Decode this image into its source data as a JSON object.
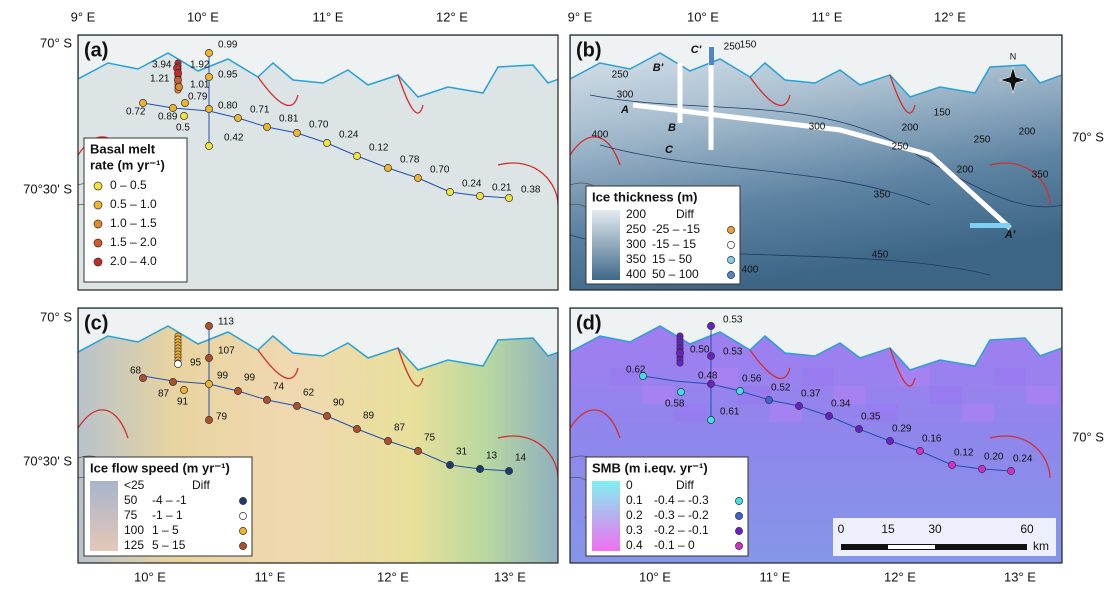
{
  "axes": {
    "top": [
      "9° E",
      "10° E",
      "11° E",
      "12° E"
    ],
    "bottom": [
      "10° E",
      "11° E",
      "12° E",
      "13° E"
    ],
    "left": [
      "70° S",
      "70°30' S"
    ],
    "right": [
      "70° S"
    ]
  },
  "panels": [
    {
      "label": "(a)",
      "legend": {
        "title": [
          "Basal melt",
          "rate (m yr⁻¹)"
        ],
        "items": [
          {
            "label": "0 – 0.5",
            "color": "#f2e33c"
          },
          {
            "label": "0.5 – 1.0",
            "color": "#f0b52b"
          },
          {
            "label": "1.0 – 1.5",
            "color": "#e38a27"
          },
          {
            "label": "1.5 – 2.0",
            "color": "#d55a2a"
          },
          {
            "label": "2.0 – 4.0",
            "color": "#c42a27"
          }
        ]
      },
      "point_labels": [
        "3.94",
        "1.92",
        "1.21",
        "1.01",
        "0.99",
        "0.95",
        "0.80",
        "0.79",
        "0.72",
        "0.89",
        "0.5",
        "0.42",
        "0.71",
        "0.81",
        "0.70",
        "0.24",
        "0.12",
        "0.78",
        "0.70",
        "0.24",
        "0.21",
        "0.38"
      ]
    },
    {
      "label": "(b)",
      "legend": {
        "title": [
          "Ice thickness (m)"
        ],
        "ramp": [
          "200",
          "250",
          "300",
          "350",
          "400"
        ],
        "ramp_colors": [
          "#e4ebef",
          "#3f6889"
        ],
        "diff_title": "Diff",
        "items": [
          {
            "label": "-25 – -15",
            "color": "#f0a030"
          },
          {
            "label": "-15 – 15",
            "color": "#ffffff"
          },
          {
            "label": "15 – 50",
            "color": "#7fd0f0"
          },
          {
            "label": "50 – 100",
            "color": "#4f86c6"
          }
        ]
      },
      "letters": [
        "A",
        "B",
        "C",
        "C'",
        "B'",
        "A'"
      ],
      "contours": [
        "250",
        "150",
        "250",
        "300",
        "200",
        "150",
        "200",
        "250",
        "200",
        "350",
        "400",
        "300",
        "250",
        "350",
        "400",
        "450"
      ],
      "compass": "N"
    },
    {
      "label": "(c)",
      "legend": {
        "title": [
          "Ice flow speed (m yr⁻¹)"
        ],
        "ramp": [
          "<25",
          "50",
          "75",
          "100",
          "125"
        ],
        "ramp_colors": [
          "#a8b4cc",
          "#e4c8b8"
        ],
        "diff_title": "Diff",
        "items": [
          {
            "label": "-4 – -1",
            "color": "#1f3a6e"
          },
          {
            "label": "-1 – 1",
            "color": "#ffffff"
          },
          {
            "label": "1 – 5",
            "color": "#f0b030"
          },
          {
            "label": "5 – 15",
            "color": "#b0502a"
          }
        ]
      },
      "point_labels": [
        "113",
        "107",
        "95",
        "68",
        "87",
        "91",
        "99",
        "79",
        "99",
        "74",
        "62",
        "90",
        "89",
        "87",
        "75",
        "31",
        "13",
        "14"
      ]
    },
    {
      "label": "(d)",
      "legend": {
        "title": [
          "SMB (m i.eqv. yr⁻¹)"
        ],
        "ramp": [
          "0",
          "0.1",
          "0.2",
          "0.3",
          "0.4"
        ],
        "ramp_colors": [
          "#80f0f0",
          "#f070f0"
        ],
        "diff_title": "Diff",
        "items": [
          {
            "label": "-0.4 – -0.3",
            "color": "#40e0e8"
          },
          {
            "label": "-0.3 – -0.2",
            "color": "#4060d8"
          },
          {
            "label": "-0.2 – -0.1",
            "color": "#6a20c8"
          },
          {
            "label": "-0.1 – 0",
            "color": "#d030c8"
          }
        ]
      },
      "point_labels": [
        "0.53",
        "0.53",
        "0.50",
        "0.62",
        "0.58",
        "0.48",
        "0.61",
        "0.56",
        "0.52",
        "0.37",
        "0.34",
        "0.35",
        "0.29",
        "0.16",
        "0.12",
        "0.20",
        "0.24"
      ],
      "scale_bar": [
        "0",
        "15",
        "30",
        "60",
        "km"
      ]
    }
  ]
}
